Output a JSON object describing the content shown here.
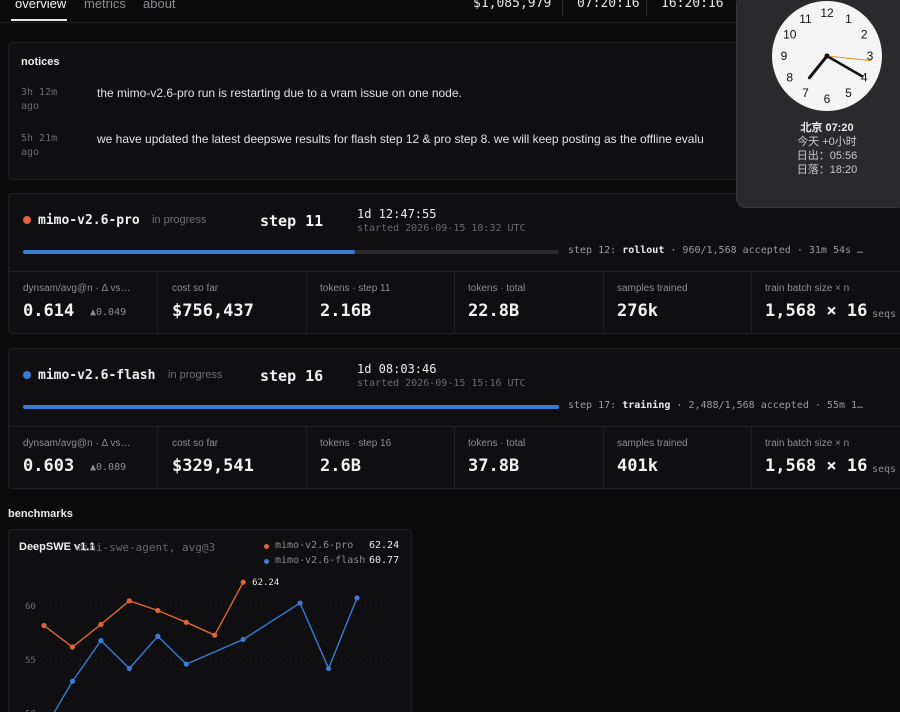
{
  "nav": {
    "tabs": [
      {
        "label": "overview",
        "active": true
      },
      {
        "label": "metrics",
        "active": false
      },
      {
        "label": "about",
        "active": false
      }
    ],
    "stats": {
      "total_cost": "$1,085,979",
      "time_a": "07:20:16",
      "time_b": "16:20:16"
    }
  },
  "notices": {
    "title": "notices",
    "items": [
      {
        "time_line1": "3h 12m",
        "time_line2": "ago",
        "text": "the mimo-v2.6-pro run is restarting due to a vram issue on one node."
      },
      {
        "time_line1": "5h 21m",
        "time_line2": "ago",
        "text": "we have updated the latest deepswe results for flash step 12 & pro step 8. we will keep posting as the offline evalu"
      }
    ]
  },
  "runs": [
    {
      "name": "mimo-v2.6-pro",
      "status": "in progress",
      "dot_color": "#e0643a",
      "step": "step 11",
      "elapsed": "1d 12:47:55",
      "started": "started 2026-09-15 10:32 UTC",
      "progress": 0.62,
      "phase_prefix": "step 12:",
      "phase_name": "rollout",
      "phase_suffix": "· 960/1,568 accepted · 31m 54s …",
      "metrics": [
        {
          "label": "dynsam/avg@n · Δ vs…",
          "value": "0.614",
          "delta": "▲0.049"
        },
        {
          "label": "cost so far",
          "value": "$756,437"
        },
        {
          "label": "tokens · step 11",
          "value": "2.16B"
        },
        {
          "label": "tokens · total",
          "value": "22.8B"
        },
        {
          "label": "samples trained",
          "value": "276k"
        },
        {
          "label": "train batch size × n",
          "value": "1,568 × 16",
          "unit": "seqs"
        }
      ]
    },
    {
      "name": "mimo-v2.6-flash",
      "status": "in progress",
      "dot_color": "#3a7bd5",
      "step": "step 16",
      "elapsed": "1d 08:03:46",
      "started": "started 2026-09-15 15:16 UTC",
      "progress": 1.0,
      "phase_prefix": "step 17:",
      "phase_name": "training",
      "phase_suffix": "· 2,488/1,568 accepted · 55m 1…",
      "metrics": [
        {
          "label": "dynsam/avg@n · Δ vs…",
          "value": "0.603",
          "delta": "▲0.089"
        },
        {
          "label": "cost so far",
          "value": "$329,541"
        },
        {
          "label": "tokens · step 16",
          "value": "2.6B"
        },
        {
          "label": "tokens · total",
          "value": "37.8B"
        },
        {
          "label": "samples trained",
          "value": "401k"
        },
        {
          "label": "train batch size × n",
          "value": "1,568 × 16",
          "unit": "seqs"
        }
      ]
    }
  ],
  "benchmarks": {
    "title": "benchmarks"
  },
  "chart_data": {
    "type": "line",
    "title": "DeepSWE v1.1",
    "subtitle": "mini-swe-agent, avg@3",
    "xlabel": "",
    "ylabel": "",
    "ylim": [
      48,
      63
    ],
    "yticks": [
      50,
      55,
      60
    ],
    "grid": true,
    "legend": "top-right",
    "series": [
      {
        "name": "mimo-v2.6-pro",
        "latest": "62.24",
        "color": "#e0643a",
        "x": [
          1,
          2,
          3,
          4,
          5,
          6,
          7,
          8
        ],
        "values": [
          58.2,
          56.2,
          58.3,
          60.5,
          59.6,
          58.5,
          57.3,
          62.24
        ]
      },
      {
        "name": "mimo-v2.6-flash",
        "latest": "60.77",
        "color": "#3a7bd5",
        "x": [
          1,
          2,
          3,
          4,
          5,
          6,
          8,
          10,
          11,
          12
        ],
        "values": [
          48.5,
          53.0,
          56.8,
          54.2,
          57.2,
          54.6,
          56.9,
          60.3,
          54.2,
          60.77
        ]
      }
    ],
    "point_label": "62.24"
  },
  "clock": {
    "numerals": [
      "12",
      "1",
      "2",
      "3",
      "4",
      "5",
      "6",
      "7",
      "8",
      "9",
      "10",
      "11"
    ],
    "city_time": "北京 07:20",
    "offset": "今天 +0小时",
    "sunrise": "日出：05:56",
    "sunset": "日落：18:20"
  }
}
